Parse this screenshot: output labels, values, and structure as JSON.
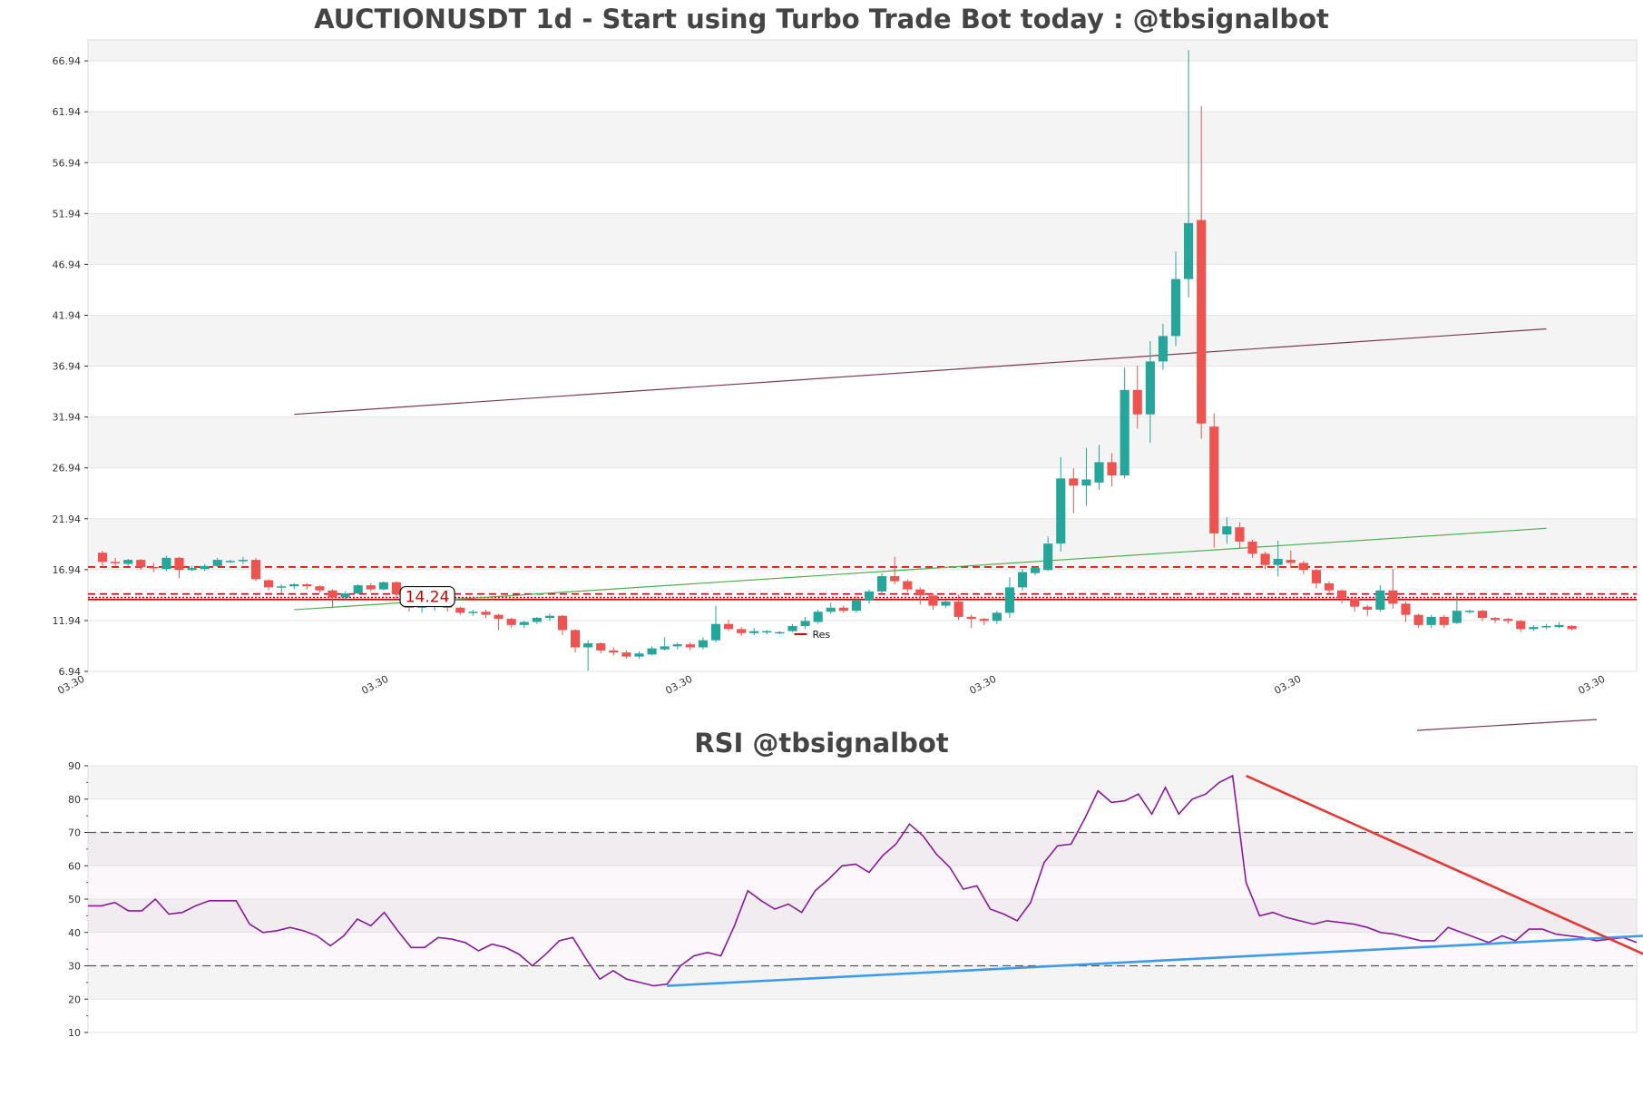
{
  "chart_data": [
    {
      "type": "candlestick",
      "title": "AUCTIONUSDT 1d - Start using Turbo Trade Bot today : @tbsignalbot",
      "ylim": [
        6.94,
        69.0
      ],
      "yticks": [
        "66.94",
        "61.94",
        "56.94",
        "51.94",
        "46.94",
        "41.94",
        "36.94",
        "31.94",
        "26.94",
        "21.94",
        "16.94",
        "11.94",
        "6.94"
      ],
      "ytick_values": [
        66.94,
        61.94,
        56.94,
        51.94,
        46.94,
        41.94,
        36.94,
        31.94,
        26.94,
        21.94,
        16.94,
        11.94,
        6.94
      ],
      "xticks": [
        "03.30",
        "03.30",
        "03.30",
        "03.30",
        "03.30",
        "03.30"
      ],
      "price_label": "14.24",
      "legend": "Res",
      "colors": {
        "up": "#26a69a",
        "down": "#ef5350",
        "res": "#cc0000",
        "trend_up": "#4caf50",
        "trend_top": "#7b3b4b",
        "band": "#f4f4f4"
      },
      "levels": [
        {
          "value": 17.2,
          "style": "dashed",
          "color": "#cc0000"
        },
        {
          "value": 14.55,
          "style": "dashed",
          "color": "#cc0000"
        },
        {
          "value": 14.2,
          "style": "dotted",
          "color": "#cc0000"
        },
        {
          "value": 14.0,
          "style": "solid",
          "color": "#cc0000"
        }
      ],
      "trendlines": [
        {
          "color": "#7b3b4b",
          "from": [
            15,
            32.2
          ],
          "to": [
            113,
            40.6
          ]
        },
        {
          "color": "#4caf50",
          "from": [
            15,
            13.0
          ],
          "to": [
            113,
            21.0
          ]
        }
      ],
      "candles": [
        [
          18.6,
          17.7,
          18.8,
          17.2
        ],
        [
          17.7,
          17.6,
          18.1,
          17.3
        ],
        [
          17.5,
          17.9,
          18.0,
          17.3
        ],
        [
          17.9,
          17.2,
          18.0,
          16.9
        ],
        [
          17.2,
          17.1,
          17.6,
          16.7
        ],
        [
          17.0,
          18.1,
          18.3,
          16.8
        ],
        [
          18.1,
          16.9,
          18.2,
          16.1
        ],
        [
          16.9,
          17.1,
          17.3,
          16.8
        ],
        [
          17.0,
          17.3,
          17.5,
          16.8
        ],
        [
          17.3,
          17.9,
          18.1,
          17.2
        ],
        [
          17.7,
          17.8,
          17.9,
          17.6
        ],
        [
          17.8,
          17.9,
          18.2,
          17.5
        ],
        [
          17.9,
          16.0,
          18.1,
          15.8
        ],
        [
          15.9,
          15.2,
          16.0,
          14.9
        ],
        [
          15.2,
          15.3,
          15.5,
          14.6
        ],
        [
          15.3,
          15.5,
          15.6,
          15.0
        ],
        [
          15.5,
          15.3,
          15.6,
          15.0
        ],
        [
          15.3,
          14.9,
          15.4,
          14.7
        ],
        [
          14.9,
          14.2,
          15.0,
          13.2
        ],
        [
          14.2,
          14.6,
          14.8,
          14.0
        ],
        [
          14.6,
          15.4,
          15.5,
          14.5
        ],
        [
          15.4,
          15.0,
          15.6,
          14.8
        ],
        [
          15.0,
          15.7,
          15.8,
          14.9
        ],
        [
          15.7,
          14.5,
          15.8,
          14.1
        ],
        [
          14.5,
          13.2,
          14.6,
          12.8
        ],
        [
          13.2,
          13.4,
          13.6,
          12.7
        ],
        [
          13.4,
          13.6,
          13.8,
          12.9
        ],
        [
          13.6,
          13.2,
          13.8,
          12.8
        ],
        [
          13.2,
          12.7,
          13.3,
          12.5
        ],
        [
          12.7,
          12.8,
          13.0,
          12.4
        ],
        [
          12.8,
          12.5,
          13.0,
          12.2
        ],
        [
          12.5,
          12.1,
          12.6,
          11.0
        ],
        [
          12.1,
          11.5,
          12.2,
          11.2
        ],
        [
          11.5,
          11.8,
          11.9,
          11.2
        ],
        [
          11.8,
          12.2,
          12.3,
          11.6
        ],
        [
          12.2,
          12.4,
          12.6,
          11.9
        ],
        [
          12.4,
          11.0,
          12.5,
          10.5
        ],
        [
          11.0,
          9.3,
          11.1,
          8.8
        ],
        [
          9.3,
          9.7,
          10.0,
          7.0
        ],
        [
          9.7,
          9.0,
          9.8,
          8.7
        ],
        [
          9.0,
          8.8,
          9.3,
          8.5
        ],
        [
          8.8,
          8.4,
          9.0,
          8.2
        ],
        [
          8.4,
          8.7,
          8.9,
          8.2
        ],
        [
          8.6,
          9.2,
          9.4,
          8.5
        ],
        [
          9.1,
          9.4,
          10.3,
          9.0
        ],
        [
          9.4,
          9.6,
          9.8,
          9.1
        ],
        [
          9.6,
          9.3,
          9.8,
          9.0
        ],
        [
          9.3,
          10.0,
          10.3,
          9.1
        ],
        [
          10.0,
          11.6,
          13.4,
          9.8
        ],
        [
          11.6,
          11.1,
          12.0,
          10.9
        ],
        [
          11.1,
          10.7,
          11.3,
          10.4
        ],
        [
          10.7,
          10.9,
          11.2,
          10.5
        ],
        [
          10.9,
          10.9,
          11.0,
          10.6
        ],
        [
          10.8,
          10.8,
          10.9,
          10.6
        ],
        [
          10.9,
          11.4,
          11.6,
          10.8
        ],
        [
          11.4,
          11.9,
          12.3,
          11.1
        ],
        [
          11.8,
          12.8,
          13.0,
          11.6
        ],
        [
          12.8,
          13.2,
          13.7,
          12.6
        ],
        [
          13.2,
          12.9,
          13.4,
          12.7
        ],
        [
          12.9,
          13.9,
          14.3,
          12.7
        ],
        [
          13.9,
          14.8,
          15.0,
          13.6
        ],
        [
          14.8,
          16.3,
          16.6,
          14.4
        ],
        [
          16.3,
          15.8,
          18.2,
          15.5
        ],
        [
          15.8,
          15.0,
          16.0,
          14.7
        ],
        [
          15.0,
          14.4,
          15.2,
          13.5
        ],
        [
          14.4,
          13.4,
          14.6,
          13.0
        ],
        [
          13.4,
          13.8,
          14.0,
          13.2
        ],
        [
          13.8,
          12.3,
          14.5,
          12.0
        ],
        [
          12.3,
          12.1,
          12.5,
          11.2
        ],
        [
          12.1,
          11.9,
          12.2,
          11.5
        ],
        [
          11.9,
          12.7,
          12.9,
          11.6
        ],
        [
          12.7,
          15.2,
          16.2,
          12.2
        ],
        [
          15.2,
          16.7,
          17.0,
          14.9
        ],
        [
          16.6,
          17.1,
          17.3,
          16.4
        ],
        [
          16.9,
          19.5,
          20.2,
          16.8
        ],
        [
          19.5,
          25.9,
          28.0,
          18.7
        ],
        [
          25.9,
          25.2,
          26.9,
          22.5
        ],
        [
          25.2,
          25.8,
          28.9,
          23.2
        ],
        [
          25.5,
          27.5,
          29.2,
          24.8
        ],
        [
          27.5,
          26.2,
          28.4,
          25.1
        ],
        [
          26.2,
          34.6,
          36.8,
          25.9
        ],
        [
          34.6,
          32.2,
          37.0,
          30.8
        ],
        [
          32.2,
          37.4,
          39.4,
          29.4
        ],
        [
          37.4,
          39.9,
          41.1,
          36.6
        ],
        [
          39.9,
          45.5,
          48.2,
          38.9
        ],
        [
          45.5,
          51.0,
          68.0,
          43.7
        ],
        [
          51.3,
          31.3,
          62.5,
          29.8
        ],
        [
          31.0,
          20.5,
          32.3,
          19.1
        ],
        [
          20.4,
          21.2,
          22.1,
          19.5
        ],
        [
          21.1,
          19.7,
          21.6,
          19.0
        ],
        [
          19.7,
          18.5,
          19.9,
          18.1
        ],
        [
          18.5,
          17.4,
          18.7,
          17.0
        ],
        [
          17.4,
          18.0,
          19.8,
          16.3
        ],
        [
          17.9,
          17.6,
          18.8,
          17.1
        ],
        [
          17.6,
          16.9,
          17.8,
          16.5
        ],
        [
          16.9,
          15.6,
          17.0,
          15.1
        ],
        [
          15.6,
          14.9,
          15.8,
          14.5
        ],
        [
          14.9,
          14.1,
          15.0,
          13.6
        ],
        [
          14.1,
          13.3,
          14.3,
          12.8
        ],
        [
          13.3,
          13.0,
          13.5,
          12.4
        ],
        [
          13.0,
          14.9,
          15.4,
          12.8
        ],
        [
          14.9,
          13.6,
          17.0,
          13.1
        ],
        [
          13.6,
          12.5,
          13.8,
          11.8
        ],
        [
          12.5,
          11.5,
          12.6,
          11.2
        ],
        [
          11.5,
          12.3,
          12.5,
          11.2
        ],
        [
          12.3,
          11.5,
          12.5,
          11.2
        ],
        [
          11.7,
          12.9,
          14.4,
          11.6
        ],
        [
          12.9,
          12.9,
          13.0,
          12.6
        ],
        [
          12.9,
          12.2,
          13.0,
          11.9
        ],
        [
          12.2,
          12.0,
          12.3,
          11.7
        ],
        [
          12.1,
          11.9,
          12.2,
          11.6
        ],
        [
          11.9,
          11.1,
          12.0,
          10.8
        ],
        [
          11.1,
          11.3,
          11.5,
          10.9
        ],
        [
          11.3,
          11.4,
          11.6,
          11.1
        ],
        [
          11.3,
          11.5,
          11.8,
          11.2
        ],
        [
          11.4,
          11.1,
          11.5,
          11.0
        ]
      ]
    },
    {
      "type": "line",
      "title": "RSI @tbsignalbot",
      "ylim": [
        10,
        90
      ],
      "yticks": [
        "90",
        "80",
        "70",
        "60",
        "50",
        "40",
        "30",
        "20",
        "10"
      ],
      "ytick_values": [
        90,
        80,
        70,
        60,
        50,
        40,
        30,
        20,
        10
      ],
      "levels": [
        70,
        30
      ],
      "colors": {
        "rsi": "#8b1a9a",
        "support": "#3d9be9",
        "resistance": "#e53935",
        "band": "#f4f4f4"
      },
      "series": [
        {
          "values": [
            48,
            48,
            49,
            46.5,
            46.5,
            50,
            45.5,
            46,
            48,
            49.5,
            49.5,
            49.5,
            42.5,
            40,
            40.5,
            41.5,
            40.5,
            39,
            36,
            39,
            44,
            42,
            46,
            40.5,
            35.5,
            35.5,
            38.5,
            38,
            37,
            34.5,
            36.5,
            35.5,
            33.5,
            30,
            33.5,
            37.5,
            38.5,
            32,
            26,
            28.5,
            26,
            25,
            24,
            24.5,
            30,
            33,
            34,
            33,
            42,
            52.5,
            49.5,
            47,
            48.5,
            46,
            52.5,
            56,
            60,
            60.5,
            58,
            63,
            66.5,
            72.5,
            69,
            63.5,
            59.5,
            53,
            54,
            47,
            45.5,
            43.5,
            49,
            61,
            66,
            66.5,
            74,
            82.5,
            79,
            79.5,
            81.5,
            75.5,
            83.5,
            75.5,
            80,
            81.5,
            85,
            87,
            55,
            45,
            46,
            44.5,
            43.5,
            42.5,
            43.5,
            43,
            42.5,
            41.5,
            40,
            39.5,
            38.5,
            37.5,
            37.5,
            41.5,
            40,
            38.5,
            37,
            39,
            37.5,
            41,
            41,
            39.5,
            39,
            38.5,
            37.5,
            38,
            38.5,
            37
          ]
        }
      ],
      "trendlines": [
        {
          "color": "#3d9be9",
          "from": [
            43,
            24
          ],
          "to": [
            118,
            39.5
          ]
        },
        {
          "color": "#e53935",
          "from": [
            86,
            87
          ],
          "to": [
            118,
            29
          ]
        }
      ]
    }
  ]
}
